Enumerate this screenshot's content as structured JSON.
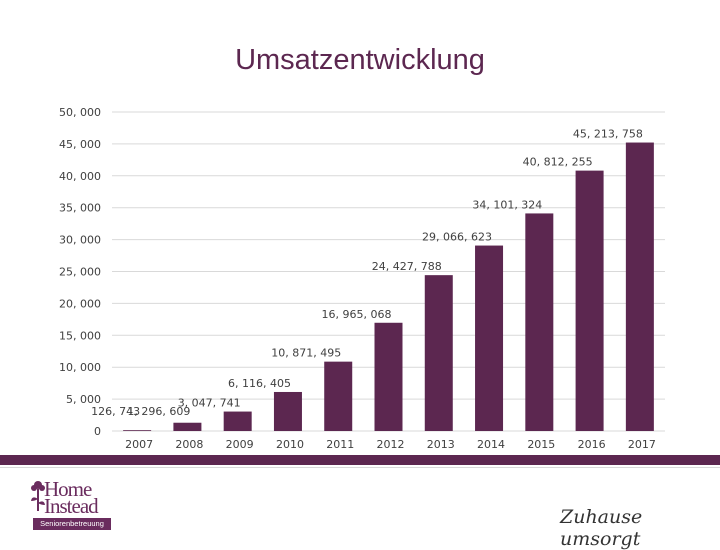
{
  "title": "Umsatzentwicklung",
  "colors": {
    "bar": "#5c2750",
    "title": "#5c2750",
    "grid": "#d9d9d9",
    "band": "#5c2750",
    "logo": "#6a2c5e"
  },
  "chart_data": {
    "type": "bar",
    "title": "Umsatzentwicklung",
    "categories": [
      "2007",
      "2008",
      "2009",
      "2010",
      "2011",
      "2012",
      "2013",
      "2014",
      "2015",
      "2016",
      "2017"
    ],
    "values": [
      126743,
      1296609,
      3047741,
      6116405,
      10871495,
      16965068,
      24427788,
      29066623,
      34101324,
      40812255,
      45213758
    ],
    "value_labels": [
      "126, 743",
      "1, 296, 609",
      "3, 047, 741",
      "6, 116, 405",
      "10, 871, 495",
      "16, 965, 068",
      "24, 427, 788",
      "29, 066, 623",
      "34, 101, 324",
      "40, 812, 255",
      "45, 213, 758"
    ],
    "ylim": [
      0,
      50000000
    ],
    "yticks": [
      0,
      5000000,
      10000000,
      15000000,
      20000000,
      25000000,
      30000000,
      35000000,
      40000000,
      45000000,
      50000000
    ],
    "ytick_labels": [
      "0",
      "5, 000",
      "10, 000",
      "15, 000",
      "20, 000",
      "25, 000",
      "30, 000",
      "35, 000",
      "40, 000",
      "45, 000",
      "50, 000"
    ],
    "grid": true,
    "legend": "none"
  },
  "logo": {
    "line1": "Home",
    "line2": "Instead",
    "tagline": "Seniorenbetreuung"
  },
  "slogan": "Zuhause umsorgt"
}
